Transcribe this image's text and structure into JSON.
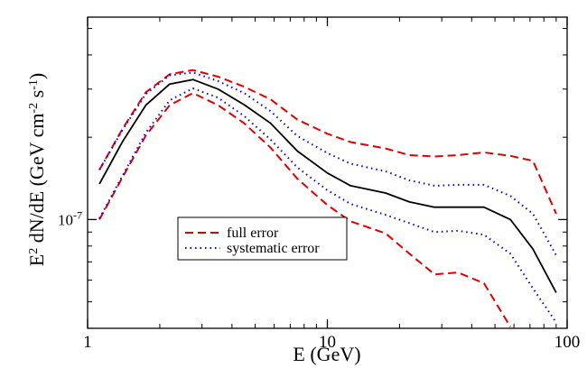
{
  "chart_data": {
    "type": "line",
    "title": "",
    "xlabel": "E (GeV)",
    "ylabel_main": "E",
    "ylabel_sup1": "2",
    "ylabel_mid": " dN/dE (GeV cm",
    "ylabel_sup2": "-2",
    "ylabel_mid2": " s",
    "ylabel_sup3": "-1",
    "ylabel_end": ")",
    "x_scale": "log",
    "y_scale": "log",
    "xlim": [
      1,
      100
    ],
    "ylim": [
      4e-08,
      5.5e-07
    ],
    "x_ticks": [
      {
        "value": 1,
        "label": "1"
      },
      {
        "value": 10,
        "label": "10"
      },
      {
        "value": 100,
        "label": "100"
      }
    ],
    "y_ticks": [
      {
        "value": 1e-07,
        "label_base": "10",
        "label_exp": "-7"
      }
    ],
    "legend": {
      "placement": "center-left",
      "entries": [
        {
          "label": "full error",
          "series": "full_error",
          "style": "dashed",
          "color": "#e00000"
        },
        {
          "label": "systematic error",
          "series": "systematic_error",
          "style": "dotted",
          "color": "#0000e0"
        }
      ]
    },
    "series": [
      {
        "name": "central",
        "color": "#000000",
        "style": "solid",
        "x": [
          1.12,
          1.4,
          1.75,
          2.2,
          2.75,
          3.5,
          4.5,
          5.8,
          7.5,
          10,
          12.5,
          17.5,
          22,
          28,
          35,
          45,
          58,
          72,
          90
        ],
        "y": [
          1.35e-07,
          1.93e-07,
          2.62e-07,
          3.13e-07,
          3.25e-07,
          3e-07,
          2.63e-07,
          2.25e-07,
          1.78e-07,
          1.48e-07,
          1.33e-07,
          1.25e-07,
          1.16e-07,
          1.11e-07,
          1.11e-07,
          1.11e-07,
          1e-07,
          7.8e-08,
          5.4e-08
        ]
      },
      {
        "name": "full_error_upper",
        "color": "#e00000",
        "style": "dashed",
        "x": [
          1.12,
          1.4,
          1.75,
          2.2,
          2.75,
          3.5,
          4.5,
          5.8,
          7.5,
          10,
          12.5,
          17.5,
          22,
          28,
          35,
          45,
          58,
          72,
          90
        ],
        "y": [
          1.52e-07,
          2.15e-07,
          2.92e-07,
          3.4e-07,
          3.52e-07,
          3.33e-07,
          3.06e-07,
          2.75e-07,
          2.32e-07,
          2.06e-07,
          1.92e-07,
          1.82e-07,
          1.72e-07,
          1.7e-07,
          1.72e-07,
          1.76e-07,
          1.71e-07,
          1.64e-07,
          1.05e-07
        ]
      },
      {
        "name": "full_error_lower",
        "color": "#e00000",
        "style": "dashed",
        "x": [
          1.12,
          1.4,
          1.75,
          2.2,
          2.75,
          3.5,
          4.5,
          5.8,
          7.5,
          10,
          12.5,
          17.5,
          22,
          28,
          35,
          45,
          58
        ],
        "y": [
          1e-07,
          1.43e-07,
          2.03e-07,
          2.62e-07,
          2.9e-07,
          2.62e-07,
          2.25e-07,
          1.83e-07,
          1.41e-07,
          1.13e-07,
          9.85e-08,
          8.9e-08,
          7.5e-08,
          6.3e-08,
          6.4e-08,
          5.85e-08,
          4.05e-08
        ]
      },
      {
        "name": "systematic_error_upper",
        "color": "#0000e0",
        "style": "dotted",
        "x": [
          1.12,
          1.4,
          1.75,
          2.2,
          2.75,
          3.5,
          4.5,
          5.8,
          7.5,
          10,
          12.5,
          17.5,
          22,
          28,
          35,
          45,
          58,
          72,
          90
        ],
        "y": [
          1.52e-07,
          2.13e-07,
          2.88e-07,
          3.37e-07,
          3.45e-07,
          3.21e-07,
          2.9e-07,
          2.49e-07,
          2.02e-07,
          1.75e-07,
          1.6e-07,
          1.5e-07,
          1.39e-07,
          1.33e-07,
          1.34e-07,
          1.34e-07,
          1.22e-07,
          1.05e-07,
          7.4e-08
        ]
      },
      {
        "name": "systematic_error_lower",
        "color": "#0000e0",
        "style": "dotted",
        "x": [
          1.12,
          1.4,
          1.75,
          2.2,
          2.75,
          3.5,
          4.5,
          5.8,
          7.5,
          10,
          12.5,
          17.5,
          22,
          28,
          35,
          45,
          58,
          72,
          90
        ],
        "y": [
          1.01e-07,
          1.45e-07,
          2.08e-07,
          2.73e-07,
          3.02e-07,
          2.79e-07,
          2.39e-07,
          1.96e-07,
          1.55e-07,
          1.28e-07,
          1.14e-07,
          1.04e-07,
          9.7e-08,
          9e-08,
          9.1e-08,
          8.8e-08,
          7.5e-08,
          5.6e-08,
          4.2e-08
        ]
      }
    ]
  }
}
